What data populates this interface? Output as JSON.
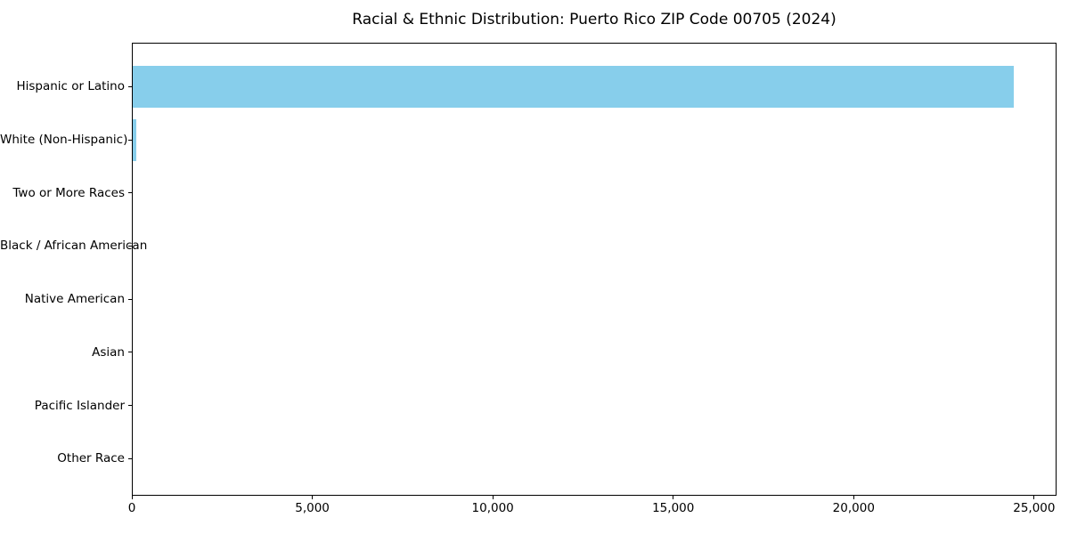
{
  "figure": {
    "background": "#ffffff"
  },
  "chart_data": {
    "type": "bar",
    "orientation": "horizontal",
    "title": "Racial & Ethnic Distribution: Puerto Rico ZIP Code 00705 (2024)",
    "categories": [
      "Hispanic or Latino",
      "White (Non-Hispanic)",
      "Two or More Races",
      "Black / African American",
      "Native American",
      "Asian",
      "Pacific Islander",
      "Other Race"
    ],
    "values": [
      24400,
      98,
      0,
      0,
      0,
      0,
      0,
      0
    ],
    "bar_color": "#87CEEB",
    "axis_color": "#000000",
    "text_color": "#000000",
    "xlabel": "",
    "ylabel": "",
    "xlim": [
      0,
      25620
    ],
    "x_ticks": [
      {
        "label": "0",
        "value": 0
      },
      {
        "label": "5,000",
        "value": 5000
      },
      {
        "label": "10,000",
        "value": 10000
      },
      {
        "label": "15,000",
        "value": 15000
      },
      {
        "label": "20,000",
        "value": 20000
      },
      {
        "label": "25,000",
        "value": 25000
      }
    ],
    "grid": false,
    "legend": false
  }
}
